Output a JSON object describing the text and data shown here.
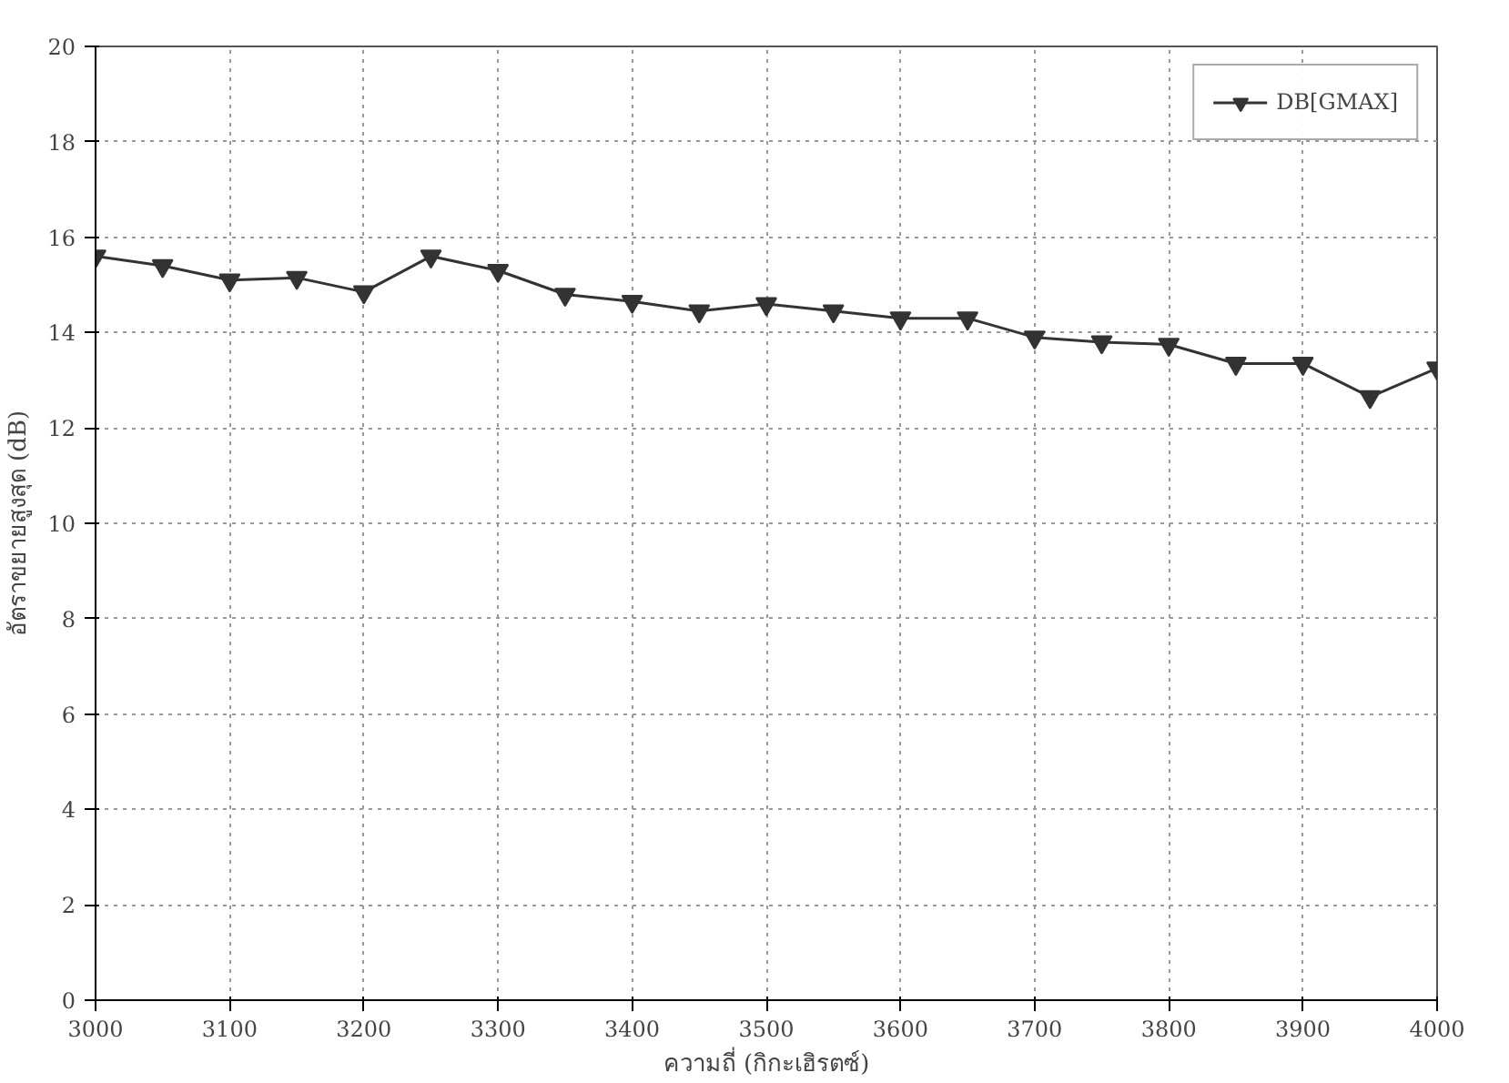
{
  "chart_data": {
    "type": "line",
    "xlabel": "ความถี่ (กิกะเฮิรตซ์)",
    "ylabel": "อัตราขยายสูงสุด (dB)",
    "x": [
      3000,
      3050,
      3100,
      3150,
      3200,
      3250,
      3300,
      3350,
      3400,
      3450,
      3500,
      3550,
      3600,
      3650,
      3700,
      3750,
      3800,
      3850,
      3900,
      3950,
      4000
    ],
    "series": [
      {
        "name": "DB[GMAX]",
        "color": "#333333",
        "values": [
          15.6,
          15.4,
          15.1,
          15.15,
          14.85,
          15.6,
          15.3,
          14.8,
          14.65,
          14.45,
          14.6,
          14.45,
          14.3,
          14.3,
          13.9,
          13.8,
          13.75,
          13.35,
          13.35,
          12.65,
          13.25
        ]
      }
    ],
    "xlim": [
      3000,
      4000
    ],
    "ylim": [
      0,
      20
    ],
    "xticks": [
      3000,
      3100,
      3200,
      3300,
      3400,
      3500,
      3600,
      3700,
      3800,
      3900,
      4000
    ],
    "yticks": [
      0,
      2,
      4,
      6,
      8,
      10,
      12,
      14,
      16,
      18,
      20
    ],
    "grid": true,
    "legend": "top right",
    "marker": "triangle",
    "line_style": "solid"
  }
}
